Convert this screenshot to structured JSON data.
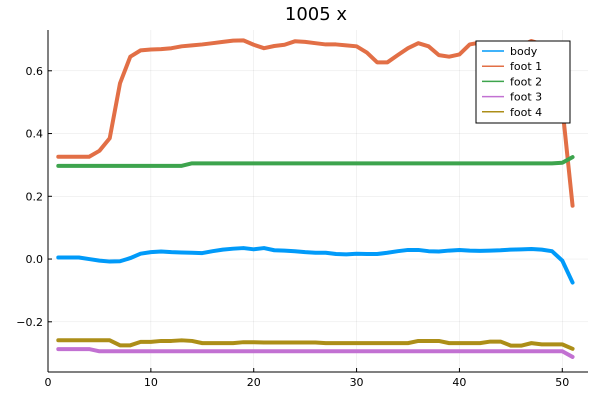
{
  "chart_data": {
    "type": "line",
    "title": "1005 x",
    "xlabel": "",
    "ylabel": "",
    "xlim": [
      0,
      52.5
    ],
    "ylim": [
      -0.36,
      0.73
    ],
    "xticks": [
      0,
      10,
      20,
      30,
      40,
      50
    ],
    "yticks": [
      -0.2,
      0.0,
      0.2,
      0.4,
      0.6
    ],
    "ytick_labels": [
      "−0.2",
      "0.0",
      "0.2",
      "0.4",
      "0.6"
    ],
    "grid": true,
    "legend_position": "top-right",
    "x": [
      1,
      2,
      3,
      4,
      5,
      6,
      7,
      8,
      9,
      10,
      11,
      12,
      13,
      14,
      15,
      16,
      17,
      18,
      19,
      20,
      21,
      22,
      23,
      24,
      25,
      26,
      27,
      28,
      29,
      30,
      31,
      32,
      33,
      34,
      35,
      36,
      37,
      38,
      39,
      40,
      41,
      42,
      43,
      44,
      45,
      46,
      47,
      48,
      49,
      50,
      51
    ],
    "series": [
      {
        "name": "body",
        "color": "#009af9",
        "values": [
          0.005,
          0.005,
          0.005,
          0.0,
          -0.005,
          -0.008,
          -0.007,
          0.003,
          0.017,
          0.022,
          0.024,
          0.022,
          0.021,
          0.02,
          0.019,
          0.025,
          0.03,
          0.033,
          0.035,
          0.031,
          0.035,
          0.028,
          0.027,
          0.025,
          0.022,
          0.02,
          0.02,
          0.016,
          0.015,
          0.017,
          0.016,
          0.016,
          0.02,
          0.025,
          0.029,
          0.029,
          0.025,
          0.024,
          0.027,
          0.029,
          0.027,
          0.026,
          0.027,
          0.028,
          0.03,
          0.031,
          0.032,
          0.03,
          0.025,
          -0.005,
          -0.075
        ]
      },
      {
        "name": "foot 1",
        "color": "#e26f46",
        "values": [
          0.326,
          0.326,
          0.326,
          0.326,
          0.345,
          0.385,
          0.56,
          0.645,
          0.665,
          0.668,
          0.669,
          0.672,
          0.678,
          0.681,
          0.684,
          0.688,
          0.692,
          0.696,
          0.697,
          0.683,
          0.672,
          0.679,
          0.683,
          0.694,
          0.692,
          0.688,
          0.684,
          0.684,
          0.681,
          0.678,
          0.658,
          0.627,
          0.627,
          0.65,
          0.672,
          0.688,
          0.678,
          0.65,
          0.645,
          0.652,
          0.684,
          0.69,
          0.672,
          0.672,
          0.678,
          0.68,
          0.695,
          0.685,
          0.672,
          0.485,
          0.17
        ]
      },
      {
        "name": "foot 2",
        "color": "#3da44d",
        "values": [
          0.297,
          0.297,
          0.297,
          0.297,
          0.297,
          0.297,
          0.297,
          0.297,
          0.297,
          0.297,
          0.297,
          0.297,
          0.297,
          0.305,
          0.305,
          0.305,
          0.305,
          0.305,
          0.305,
          0.305,
          0.305,
          0.305,
          0.305,
          0.305,
          0.305,
          0.305,
          0.305,
          0.305,
          0.305,
          0.305,
          0.305,
          0.305,
          0.305,
          0.305,
          0.305,
          0.305,
          0.305,
          0.305,
          0.305,
          0.305,
          0.305,
          0.305,
          0.305,
          0.305,
          0.305,
          0.305,
          0.305,
          0.305,
          0.305,
          0.307,
          0.325
        ]
      },
      {
        "name": "foot 3",
        "color": "#c271d2",
        "values": [
          -0.287,
          -0.287,
          -0.287,
          -0.287,
          -0.294,
          -0.294,
          -0.294,
          -0.294,
          -0.294,
          -0.294,
          -0.294,
          -0.294,
          -0.294,
          -0.294,
          -0.294,
          -0.294,
          -0.294,
          -0.294,
          -0.294,
          -0.294,
          -0.294,
          -0.294,
          -0.294,
          -0.294,
          -0.294,
          -0.294,
          -0.294,
          -0.294,
          -0.294,
          -0.294,
          -0.294,
          -0.294,
          -0.294,
          -0.294,
          -0.294,
          -0.294,
          -0.294,
          -0.294,
          -0.294,
          -0.294,
          -0.294,
          -0.294,
          -0.294,
          -0.294,
          -0.294,
          -0.294,
          -0.294,
          -0.294,
          -0.294,
          -0.294,
          -0.312
        ]
      },
      {
        "name": "foot 4",
        "color": "#ac8e18",
        "values": [
          -0.259,
          -0.259,
          -0.259,
          -0.259,
          -0.259,
          -0.259,
          -0.275,
          -0.275,
          -0.264,
          -0.264,
          -0.261,
          -0.261,
          -0.259,
          -0.261,
          -0.268,
          -0.268,
          -0.268,
          -0.268,
          -0.265,
          -0.265,
          -0.266,
          -0.266,
          -0.266,
          -0.266,
          -0.266,
          -0.266,
          -0.268,
          -0.268,
          -0.268,
          -0.268,
          -0.268,
          -0.268,
          -0.268,
          -0.268,
          -0.268,
          -0.261,
          -0.261,
          -0.261,
          -0.268,
          -0.268,
          -0.268,
          -0.268,
          -0.263,
          -0.263,
          -0.276,
          -0.276,
          -0.268,
          -0.272,
          -0.272,
          -0.272,
          -0.286
        ]
      }
    ]
  }
}
